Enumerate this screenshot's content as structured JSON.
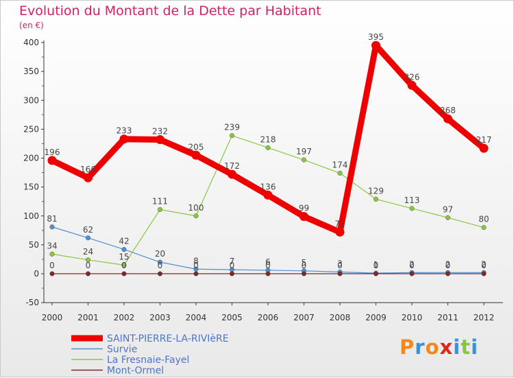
{
  "colors": {
    "title": "#d31f65",
    "legend_text": "#4f73c8",
    "axis": "#333333"
  },
  "chart_data": {
    "type": "line",
    "title": "Evolution du Montant de la Dette par Habitant",
    "subtitle": "(en €)",
    "x": [
      "2000",
      "2001",
      "2002",
      "2003",
      "2004",
      "2005",
      "2006",
      "2007",
      "2008",
      "2009",
      "2010",
      "2011",
      "2012"
    ],
    "ylim": [
      -50,
      400
    ],
    "yticks": [
      -50,
      0,
      50,
      100,
      150,
      200,
      250,
      300,
      350,
      400
    ],
    "grid": false,
    "legend_position": "bottom-left",
    "series": [
      {
        "name": "SAINT-PIERRE-LA-RIVIèRE",
        "color": "#ee0000",
        "thick": true,
        "values": [
          196,
          166,
          233,
          232,
          205,
          172,
          136,
          99,
          72,
          395,
          326,
          268,
          217
        ]
      },
      {
        "name": "Survie",
        "color": "#4f8ed0",
        "thick": false,
        "values": [
          81,
          62,
          42,
          20,
          8,
          7,
          6,
          5,
          3,
          1,
          2,
          2,
          2
        ]
      },
      {
        "name": "La Fresnaie-Fayel",
        "color": "#8ac640",
        "thick": false,
        "values": [
          34,
          24,
          15,
          111,
          100,
          239,
          218,
          197,
          174,
          129,
          113,
          97,
          80
        ]
      },
      {
        "name": "Mont-Ormel",
        "color": "#7a2a2a",
        "thick": false,
        "values": [
          0,
          0,
          0,
          0,
          0,
          0,
          0,
          0,
          0,
          0,
          0,
          0,
          0
        ]
      }
    ]
  },
  "logo": {
    "text": "Proxiti",
    "colors": [
      "#f08a1e",
      "#3a8fd6",
      "#f08a1e",
      "#e0261a",
      "#3a8fd6",
      "#8ac640",
      "#3a8fd6"
    ]
  }
}
